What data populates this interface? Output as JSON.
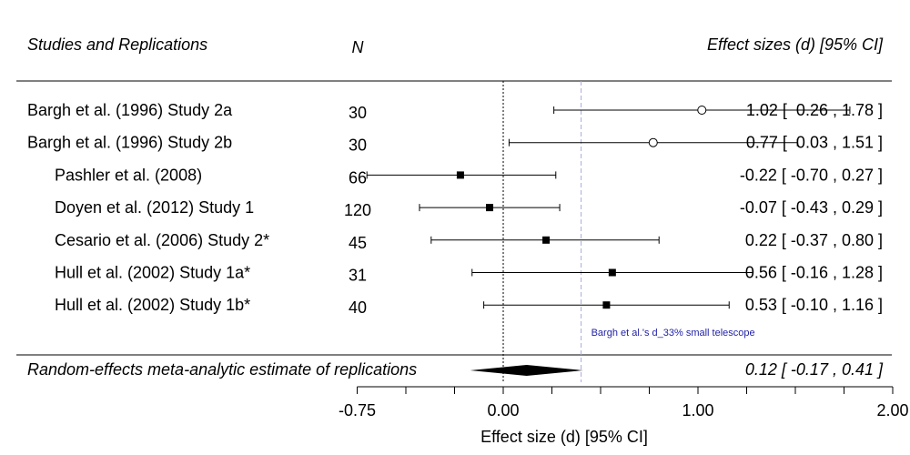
{
  "chart_data": {
    "type": "forest",
    "headers": {
      "studies": "Studies and Replications",
      "n": "N",
      "effects": "Effect sizes (d) [95% CI]"
    },
    "studies": [
      {
        "label": "Bargh et al. (1996) Study 2a",
        "n": "30",
        "d": 1.02,
        "lo": 0.26,
        "hi": 1.78,
        "ci_text": "1.02 [  0.26 , 1.78 ]",
        "original": true
      },
      {
        "label": "Bargh et al. (1996) Study 2b",
        "n": "30",
        "d": 0.77,
        "lo": 0.03,
        "hi": 1.51,
        "ci_text": "0.77 [  0.03 , 1.51 ]",
        "original": true
      },
      {
        "label": "Pashler et al. (2008)",
        "n": "66",
        "d": -0.22,
        "lo": -0.7,
        "hi": 0.27,
        "ci_text": "-0.22 [ -0.70 , 0.27 ]",
        "original": false
      },
      {
        "label": "Doyen et al. (2012) Study 1",
        "n": "120",
        "d": -0.07,
        "lo": -0.43,
        "hi": 0.29,
        "ci_text": "-0.07 [ -0.43 , 0.29 ]",
        "original": false
      },
      {
        "label": "Cesario et al. (2006) Study 2*",
        "n": "45",
        "d": 0.22,
        "lo": -0.37,
        "hi": 0.8,
        "ci_text": "0.22 [ -0.37 , 0.80 ]",
        "original": false
      },
      {
        "label": "Hull et al. (2002) Study 1a*",
        "n": "31",
        "d": 0.56,
        "lo": -0.16,
        "hi": 1.28,
        "ci_text": "0.56 [ -0.16 , 1.28 ]",
        "original": false
      },
      {
        "label": "Hull et al. (2002) Study 1b*",
        "n": "40",
        "d": 0.53,
        "lo": -0.1,
        "hi": 1.16,
        "ci_text": "0.53 [ -0.10 , 1.16 ]",
        "original": false
      }
    ],
    "summary": {
      "label": "Random-effects meta-analytic estimate of replications",
      "d": 0.12,
      "lo": -0.17,
      "hi": 0.41,
      "ci_text": "0.12 [ -0.17 , 0.41 ]"
    },
    "reference_lines": [
      {
        "x": 0.0,
        "style": "dotted",
        "color": "#000000"
      },
      {
        "x": 0.4,
        "style": "dashed",
        "color": "#aaaadd",
        "label": "Bargh et al.'s d_33% small telescope",
        "label_color": "#1f1fa8"
      }
    ],
    "xaxis": {
      "label": "Effect size (d) [95% CI]",
      "ticks": [
        -0.75,
        -0.5,
        -0.25,
        0.0,
        0.25,
        0.5,
        0.75,
        1.0,
        1.25,
        1.5,
        1.75,
        2.0
      ],
      "tick_labels": [
        {
          "value": -0.75,
          "text": "-0.75"
        },
        {
          "value": 0.0,
          "text": "0.00"
        },
        {
          "value": 1.0,
          "text": "1.00"
        },
        {
          "value": 2.0,
          "text": "2.00"
        }
      ],
      "range": [
        -0.75,
        2.0
      ]
    },
    "legend": "none",
    "grid": false
  }
}
